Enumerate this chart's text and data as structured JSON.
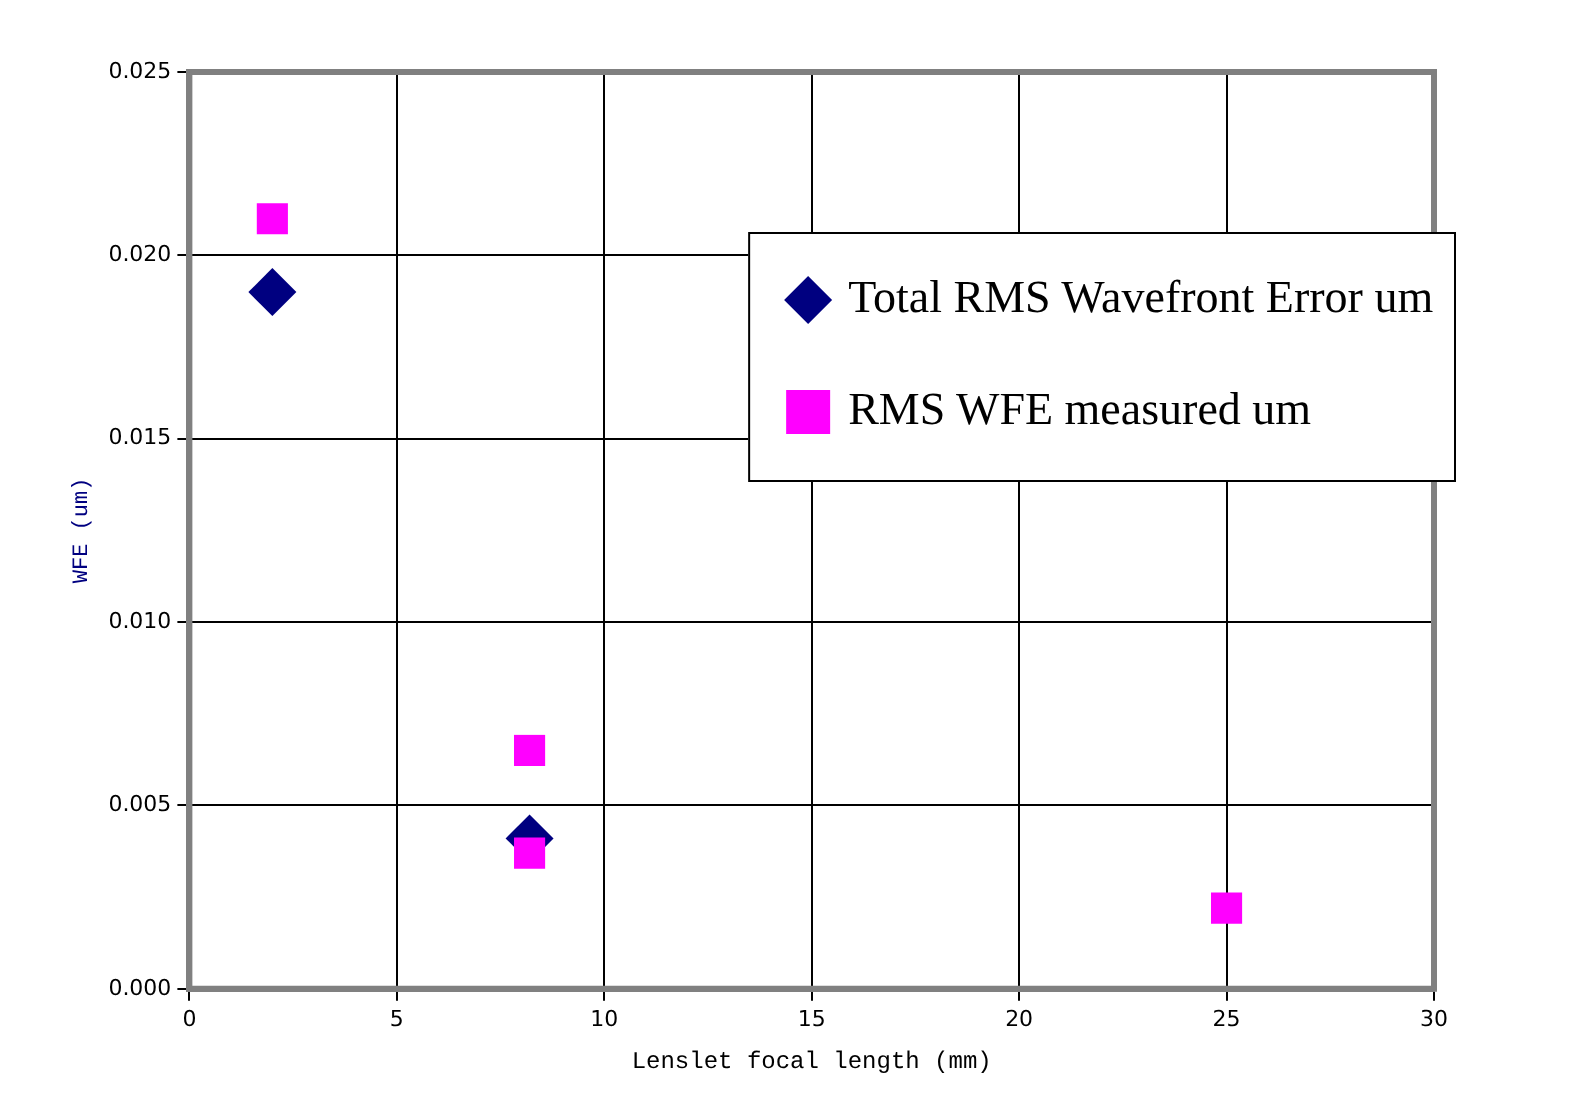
{
  "chart_data": {
    "type": "scatter",
    "xlabel": "Lenslet focal length (mm)",
    "ylabel": "WFE (um)",
    "xlim": [
      0,
      30
    ],
    "xticks": [
      0,
      5,
      10,
      15,
      20,
      25,
      30
    ],
    "ylim": [
      0,
      0.025
    ],
    "yticks": [
      {
        "value": 0,
        "label": "0.000"
      },
      {
        "value": 0.005,
        "label": "0.005"
      },
      {
        "value": 0.01,
        "label": "0.010"
      },
      {
        "value": 0.015,
        "label": "0.015"
      },
      {
        "value": 0.02,
        "label": "0.020"
      },
      {
        "value": 0.025,
        "label": "0.025"
      }
    ],
    "grid": true,
    "legend": "top right",
    "series": [
      {
        "name": "Total RMS Wavefront Error um",
        "color": "#000080",
        "marker": "diamond",
        "x": [
          2,
          8.2
        ],
        "values": [
          0.019,
          0.0041
        ]
      },
      {
        "name": "RMS WFE measured um",
        "color": "#ff00ff",
        "marker": "square",
        "x": [
          2,
          8.2,
          8.2,
          25
        ],
        "values": [
          0.021,
          0.0065,
          0.0037,
          0.0022
        ]
      }
    ]
  }
}
